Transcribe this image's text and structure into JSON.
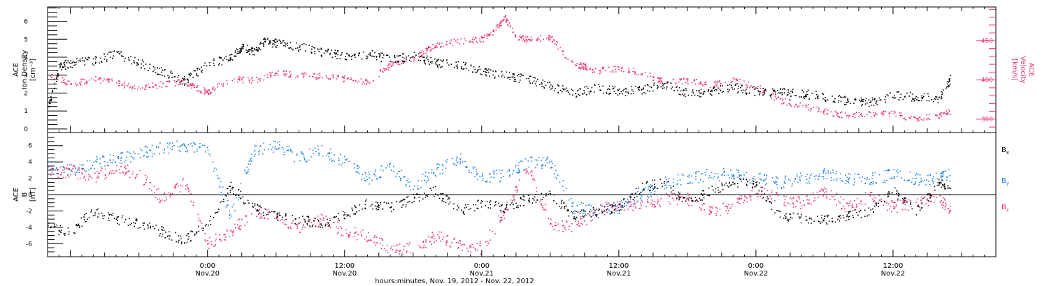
{
  "colors": {
    "black": "#000000",
    "pink": "#e8336a",
    "blue": "#1f7fe0",
    "axis": "#000000"
  },
  "x_axis": {
    "label": "hours:minutes, Nov. 19, 2012 - Nov. 22, 2012",
    "ticks": [
      {
        "hour": 24,
        "time": "0:00",
        "date": "Nov.20"
      },
      {
        "hour": 36,
        "time": "12:00",
        "date": "Nov.20"
      },
      {
        "hour": 48,
        "time": "0:00",
        "date": "Nov.21"
      },
      {
        "hour": 60,
        "time": "12:00",
        "date": "Nov.21"
      },
      {
        "hour": 72,
        "time": "0:00",
        "date": "Nov.22"
      },
      {
        "hour": 84,
        "time": "12:00",
        "date": "Nov.22"
      }
    ]
  },
  "chart_data": [
    {
      "type": "scatter",
      "panel": "top",
      "xlim_hours": [
        10.0,
        93.0
      ],
      "left_axis": {
        "label_lines": [
          "ACE",
          "Ion Density"
        ],
        "unit": "[cm⁻³]",
        "ylim": [
          -0.2,
          6.8
        ],
        "tick_labels": [
          "0",
          "1",
          "2",
          "3",
          "4",
          "5",
          "6"
        ]
      },
      "right_axis": {
        "label_lines": [
          "ACE",
          "Velocity"
        ],
        "unit": "[km/s]",
        "ylim": [
          333,
          493
        ],
        "tick_labels": [
          "350",
          "400",
          "450"
        ]
      },
      "series": [
        {
          "id": "density",
          "axis": "left",
          "color": "black",
          "x": [
            10,
            11,
            12,
            14,
            16,
            18,
            20,
            22,
            24,
            26,
            27,
            28,
            29,
            30,
            32,
            34,
            36,
            38,
            40,
            42,
            44,
            46,
            48,
            50,
            52,
            54,
            56,
            58,
            60,
            62,
            64,
            66,
            68,
            70,
            72,
            74,
            76,
            78,
            80,
            82,
            84,
            86,
            88,
            89
          ],
          "y": [
            1.2,
            3.5,
            3.7,
            3.8,
            4.2,
            3.7,
            3.2,
            2.7,
            3.6,
            4.0,
            4.6,
            4.3,
            4.9,
            4.8,
            4.6,
            4.3,
            4.1,
            4.2,
            3.9,
            4.1,
            3.7,
            3.6,
            3.2,
            3.0,
            2.8,
            2.4,
            2.0,
            2.3,
            2.1,
            2.2,
            2.5,
            2.0,
            2.1,
            2.3,
            2.1,
            2.1,
            2.0,
            1.8,
            1.6,
            1.5,
            1.9,
            1.8,
            1.7,
            2.8
          ]
        },
        {
          "id": "velocity",
          "axis": "right",
          "color": "pink",
          "x": [
            10,
            12,
            14,
            16,
            18,
            20,
            22,
            23,
            24,
            26,
            28,
            30,
            32,
            34,
            36,
            38,
            40,
            42,
            43,
            44,
            46,
            48,
            49,
            50,
            51,
            52,
            54,
            56,
            57,
            58,
            60,
            62,
            64,
            66,
            68,
            70,
            72,
            74,
            76,
            78,
            80,
            82,
            84,
            86,
            88,
            89
          ],
          "y": [
            407,
            395,
            402,
            397,
            390,
            395,
            398,
            390,
            385,
            402,
            400,
            410,
            407,
            405,
            402,
            398,
            420,
            428,
            438,
            445,
            450,
            452,
            462,
            480,
            455,
            452,
            455,
            420,
            418,
            412,
            415,
            410,
            398,
            400,
            395,
            400,
            392,
            375,
            368,
            360,
            355,
            357,
            358,
            350,
            355,
            360
          ]
        }
      ]
    },
    {
      "type": "scatter",
      "panel": "bottom",
      "xlim_hours": [
        10.0,
        93.0
      ],
      "y_axis": {
        "label_lines": [
          "ACE",
          "B"
        ],
        "unit": "[nT]",
        "ylim": [
          -7.6,
          7.6
        ],
        "tick_labels": [
          "-6",
          "-4",
          "-2",
          "0",
          "2",
          "4",
          "6"
        ]
      },
      "series": [
        {
          "id": "bx",
          "name": "Bx",
          "color": "black",
          "x": [
            10,
            12,
            14,
            16,
            18,
            20,
            22,
            24,
            26,
            28,
            30,
            32,
            34,
            36,
            38,
            40,
            42,
            44,
            46,
            48,
            50,
            52,
            54,
            56,
            58,
            60,
            62,
            64,
            66,
            68,
            70,
            72,
            74,
            76,
            78,
            80,
            82,
            84,
            86,
            88,
            89
          ],
          "y": [
            -4.0,
            -4.5,
            -2.0,
            -3.0,
            -3.5,
            -4.5,
            -5.5,
            -3.5,
            1.0,
            -1.5,
            -2.5,
            -3.0,
            -3.5,
            -2.5,
            -1.0,
            -1.5,
            -0.5,
            0.5,
            -2.0,
            -1.0,
            -1.5,
            -0.5,
            0.0,
            -2.5,
            -2.0,
            -1.5,
            1.0,
            1.5,
            -1.0,
            0.5,
            1.5,
            1.5,
            -2.5,
            -2.8,
            -3.0,
            -2.5,
            -2.0,
            0.5,
            -2.0,
            1.5,
            0.5
          ]
        },
        {
          "id": "by",
          "name": "By",
          "color": "blue",
          "x": [
            10,
            12,
            14,
            16,
            18,
            20,
            22,
            24,
            26,
            28,
            30,
            32,
            34,
            36,
            38,
            40,
            42,
            44,
            46,
            48,
            50,
            52,
            54,
            56,
            58,
            60,
            62,
            64,
            66,
            68,
            70,
            72,
            74,
            76,
            78,
            80,
            82,
            84,
            86,
            88,
            89
          ],
          "y": [
            3.5,
            3.0,
            4.0,
            4.5,
            5.0,
            5.8,
            6.0,
            5.5,
            -2.5,
            5.5,
            6.0,
            4.5,
            5.5,
            4.0,
            2.0,
            3.5,
            1.0,
            3.0,
            4.5,
            2.0,
            2.5,
            4.0,
            4.0,
            -1.5,
            -2.0,
            -1.5,
            0.0,
            1.5,
            2.0,
            2.5,
            2.5,
            2.0,
            1.5,
            2.0,
            2.5,
            2.0,
            2.0,
            2.5,
            2.0,
            2.0,
            2.5
          ]
        },
        {
          "id": "bz",
          "name": "Bz",
          "color": "pink",
          "x": [
            10,
            12,
            14,
            16,
            18,
            20,
            22,
            24,
            26,
            28,
            30,
            32,
            34,
            36,
            38,
            40,
            42,
            44,
            46,
            48,
            50,
            52,
            54,
            56,
            58,
            60,
            62,
            64,
            66,
            68,
            70,
            72,
            74,
            76,
            78,
            80,
            82,
            84,
            86,
            88,
            89
          ],
          "y": [
            2.5,
            3.0,
            2.0,
            3.5,
            2.5,
            -0.5,
            1.5,
            -6.0,
            -4.5,
            -2.0,
            -2.5,
            -4.0,
            -3.0,
            -4.5,
            -5.0,
            -6.5,
            -6.5,
            -5.0,
            -6.0,
            -6.5,
            -2.0,
            3.5,
            -3.5,
            -4.0,
            -2.0,
            -1.0,
            -1.5,
            -0.5,
            -0.5,
            -2.0,
            -1.5,
            0.5,
            -0.5,
            -1.0,
            0.5,
            -1.5,
            0.0,
            -1.5,
            -1.0,
            -0.5,
            -2.0
          ]
        }
      ]
    }
  ]
}
